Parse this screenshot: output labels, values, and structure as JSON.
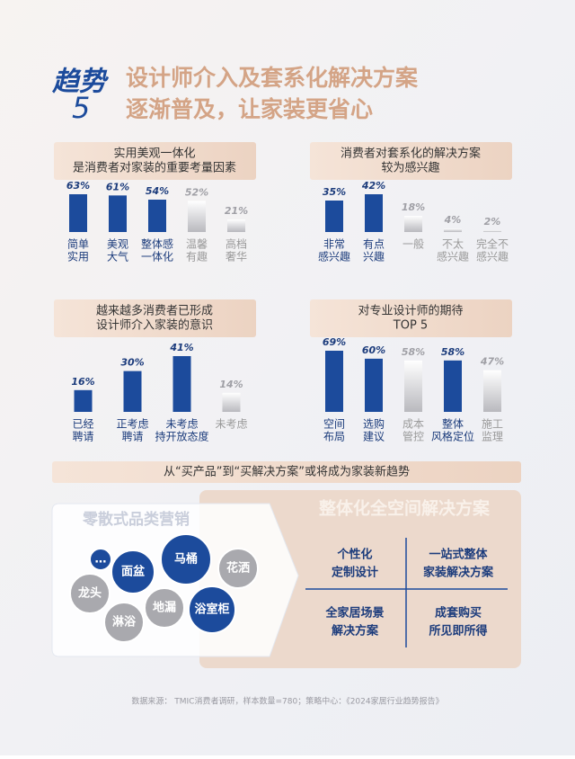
{
  "header": {
    "badge": "趋势",
    "number": "5",
    "title_lines": [
      "设计师介入及套系化解决方案",
      "逐渐普及，让家装更省心"
    ]
  },
  "chart_data": [
    {
      "type": "bar",
      "title_lines": [
        "实用美观一体化",
        "是消费者对家装的重要考量因素"
      ],
      "categories": [
        [
          "简单",
          "实用"
        ],
        [
          "美观",
          "大气"
        ],
        [
          "整体感",
          "一体化"
        ],
        [
          "温馨",
          "有趣"
        ],
        [
          "高档",
          "奢华"
        ]
      ],
      "values": [
        63,
        61,
        54,
        52,
        21
      ],
      "value_labels": [
        "63%",
        "61%",
        "54%",
        "52%",
        "21%"
      ],
      "colors": [
        "#1c4b9c",
        "#1c4b9c",
        "#1c4b9c",
        "#c8c8cc",
        "#c8c8cc"
      ]
    },
    {
      "type": "bar",
      "title_lines": [
        "消费者对套系化的解决方案",
        "较为感兴趣"
      ],
      "categories": [
        [
          "非常",
          "感兴趣"
        ],
        [
          "有点",
          "兴趣"
        ],
        [
          "一般"
        ],
        [
          "不太",
          "感兴趣"
        ],
        [
          "完全不",
          "感兴趣"
        ]
      ],
      "values": [
        35,
        42,
        18,
        4,
        2
      ],
      "value_labels": [
        "35%",
        "42%",
        "18%",
        "4%",
        "2%"
      ],
      "colors": [
        "#1c4b9c",
        "#1c4b9c",
        "#c8c8cc",
        "#c8c8cc",
        "#c8c8cc"
      ]
    },
    {
      "type": "bar",
      "title_lines": [
        "越来越多消费者已形成",
        "设计师介入家装的意识"
      ],
      "categories": [
        [
          "已经",
          "聘请"
        ],
        [
          "正考虑",
          "聘请"
        ],
        [
          "未考虑",
          "持开放态度"
        ],
        [
          "未考虑"
        ]
      ],
      "values": [
        16,
        30,
        41,
        14
      ],
      "value_labels": [
        "16%",
        "30%",
        "41%",
        "14%"
      ],
      "colors": [
        "#1c4b9c",
        "#1c4b9c",
        "#1c4b9c",
        "#c8c8cc"
      ]
    },
    {
      "type": "bar",
      "title_lines": [
        "对专业设计师的期待",
        "TOP 5"
      ],
      "categories": [
        [
          "空间",
          "布局"
        ],
        [
          "选购",
          "建议"
        ],
        [
          "成本",
          "管控"
        ],
        [
          "整体",
          "风格定位"
        ],
        [
          "施工",
          "监理"
        ]
      ],
      "values": [
        69,
        60,
        58,
        58,
        47
      ],
      "value_labels": [
        "69%",
        "60%",
        "58%",
        "58%",
        "47%"
      ],
      "colors": [
        "#1c4b9c",
        "#1c4b9c",
        "#c8c8cc",
        "#1c4b9c",
        "#c8c8cc"
      ]
    }
  ],
  "banner": "从“买产品”到“买解决方案”或将成为家装新趋势",
  "left_panel": {
    "title": "零散式品类营销",
    "bubbles": [
      "…",
      "面盆",
      "马桶",
      "花洒",
      "龙头",
      "地漏",
      "浴室柜",
      "淋浴"
    ]
  },
  "right_panel": {
    "title": "整体化全空间解决方案",
    "cells": [
      [
        "个性化",
        "定制设计"
      ],
      [
        "一站式整体",
        "家装解决方案"
      ],
      [
        "全家居场景",
        "解决方案"
      ],
      [
        "成套购买",
        "所见即所得"
      ]
    ]
  },
  "source": "数据来源： TMIC消费者调研，样本数量=780；策略中心：《2024家居行业趋势报告》"
}
